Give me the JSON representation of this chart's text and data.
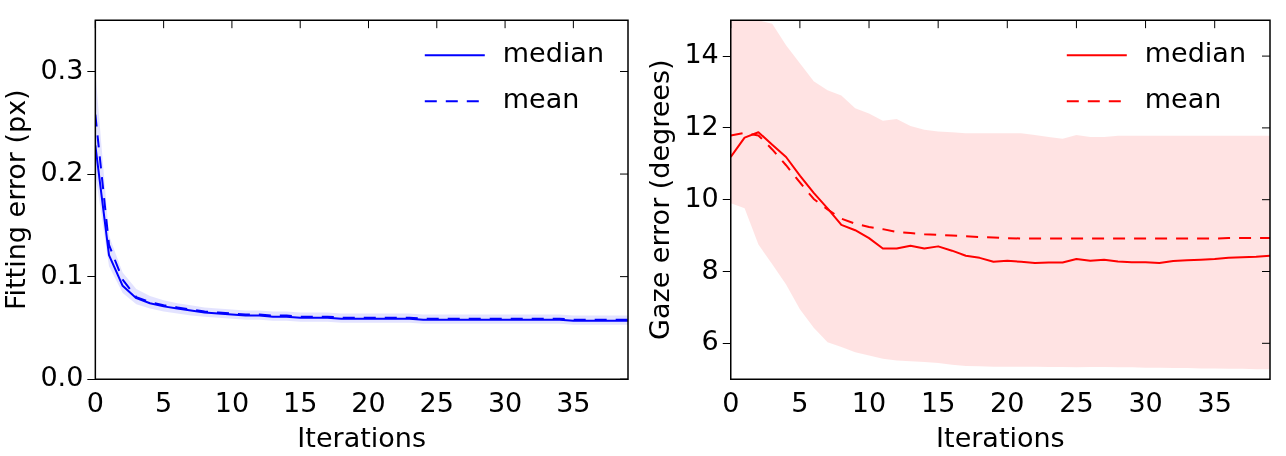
{
  "chart_data": [
    {
      "type": "line",
      "xlabel": "Iterations",
      "ylabel": "Fitting error (px)",
      "x": [
        0,
        1,
        2,
        3,
        4,
        5,
        6,
        7,
        8,
        9,
        10,
        11,
        12,
        13,
        14,
        15,
        16,
        17,
        18,
        19,
        20,
        21,
        22,
        23,
        24,
        25,
        26,
        27,
        28,
        29,
        30,
        31,
        32,
        33,
        34,
        35,
        36,
        37,
        38,
        39
      ],
      "xlim": [
        0,
        39
      ],
      "xticks": [
        0,
        5,
        10,
        15,
        20,
        25,
        30,
        35
      ],
      "ylim": [
        0,
        0.35
      ],
      "yticks": [
        {
          "value": 0,
          "label": "0.0"
        },
        0.1,
        0.2,
        0.3
      ],
      "legend": "top right",
      "grid": false,
      "series": [
        {
          "name": "median",
          "color": "#0000ff",
          "line_style": "solid",
          "values": [
            0.228,
            0.121,
            0.091,
            0.079,
            0.074,
            0.071,
            0.069,
            0.067,
            0.065,
            0.064,
            0.063,
            0.062,
            0.062,
            0.061,
            0.061,
            0.06,
            0.06,
            0.06,
            0.059,
            0.059,
            0.059,
            0.059,
            0.059,
            0.059,
            0.058,
            0.058,
            0.058,
            0.058,
            0.058,
            0.058,
            0.058,
            0.058,
            0.058,
            0.058,
            0.058,
            0.057,
            0.057,
            0.057,
            0.057,
            0.057
          ],
          "lower": [
            0.2,
            0.11,
            0.084,
            0.073,
            0.069,
            0.066,
            0.064,
            0.062,
            0.061,
            0.06,
            0.059,
            0.058,
            0.058,
            0.057,
            0.057,
            0.056,
            0.056,
            0.056,
            0.055,
            0.055,
            0.055,
            0.055,
            0.055,
            0.055,
            0.054,
            0.054,
            0.054,
            0.054,
            0.054,
            0.054,
            0.054,
            0.054,
            0.054,
            0.054,
            0.054,
            0.053,
            0.053,
            0.053,
            0.053,
            0.053
          ],
          "upper": [
            0.3,
            0.14,
            0.104,
            0.088,
            0.081,
            0.077,
            0.074,
            0.072,
            0.07,
            0.069,
            0.068,
            0.067,
            0.067,
            0.066,
            0.066,
            0.065,
            0.065,
            0.065,
            0.064,
            0.064,
            0.064,
            0.064,
            0.064,
            0.064,
            0.063,
            0.063,
            0.063,
            0.063,
            0.063,
            0.063,
            0.063,
            0.063,
            0.063,
            0.063,
            0.063,
            0.062,
            0.062,
            0.062,
            0.062,
            0.062
          ]
        },
        {
          "name": "mean",
          "color": "#0000ff",
          "line_style": "dashed",
          "values": [
            0.258,
            0.131,
            0.097,
            0.08,
            0.075,
            0.072,
            0.07,
            0.068,
            0.066,
            0.065,
            0.064,
            0.063,
            0.063,
            0.062,
            0.062,
            0.061,
            0.061,
            0.061,
            0.06,
            0.06,
            0.06,
            0.06,
            0.06,
            0.06,
            0.059,
            0.059,
            0.059,
            0.059,
            0.059,
            0.059,
            0.059,
            0.059,
            0.059,
            0.059,
            0.059,
            0.058,
            0.058,
            0.058,
            0.058,
            0.058
          ]
        }
      ]
    },
    {
      "type": "line",
      "xlabel": "Iterations",
      "ylabel": "Gaze error (degrees)",
      "x": [
        0,
        1,
        2,
        3,
        4,
        5,
        6,
        7,
        8,
        9,
        10,
        11,
        12,
        13,
        14,
        15,
        16,
        17,
        18,
        19,
        20,
        21,
        22,
        23,
        24,
        25,
        26,
        27,
        28,
        29,
        30,
        31,
        32,
        33,
        34,
        35,
        36,
        37,
        38,
        39
      ],
      "xlim": [
        0,
        39
      ],
      "xticks": [
        0,
        5,
        10,
        15,
        20,
        25,
        30,
        35
      ],
      "ylim": [
        5,
        15
      ],
      "yticks": [
        6,
        8,
        10,
        12,
        14
      ],
      "legend": "top right",
      "grid": false,
      "series": [
        {
          "name": "median",
          "color": "#ff0000",
          "line_style": "solid",
          "values": [
            11.19,
            11.73,
            11.88,
            11.53,
            11.19,
            10.67,
            10.19,
            9.76,
            9.3,
            9.15,
            8.93,
            8.64,
            8.64,
            8.72,
            8.64,
            8.7,
            8.58,
            8.44,
            8.38,
            8.27,
            8.3,
            8.27,
            8.24,
            8.25,
            8.25,
            8.35,
            8.3,
            8.33,
            8.28,
            8.26,
            8.26,
            8.24,
            8.29,
            8.31,
            8.33,
            8.35,
            8.38,
            8.4,
            8.41,
            8.44
          ],
          "lower": [
            9.9,
            9.76,
            8.75,
            8.2,
            7.64,
            6.95,
            6.43,
            6.03,
            5.9,
            5.75,
            5.66,
            5.57,
            5.52,
            5.5,
            5.48,
            5.45,
            5.4,
            5.37,
            5.36,
            5.35,
            5.35,
            5.35,
            5.35,
            5.34,
            5.34,
            5.33,
            5.34,
            5.34,
            5.33,
            5.33,
            5.32,
            5.32,
            5.31,
            5.31,
            5.3,
            5.3,
            5.29,
            5.29,
            5.28,
            5.28
          ],
          "upper": [
            15,
            15,
            15,
            14.9,
            14.3,
            13.8,
            13.3,
            13.05,
            12.9,
            12.55,
            12.4,
            12.2,
            12.25,
            12.05,
            11.95,
            11.9,
            11.88,
            11.85,
            11.85,
            11.85,
            11.85,
            11.85,
            11.8,
            11.75,
            11.7,
            11.8,
            11.75,
            11.75,
            11.78,
            11.78,
            11.78,
            11.78,
            11.78,
            11.78,
            11.78,
            11.78,
            11.78,
            11.78,
            11.78,
            11.78
          ]
        },
        {
          "name": "mean",
          "color": "#ff0000",
          "line_style": "dashed",
          "values": [
            11.79,
            11.86,
            11.79,
            11.4,
            10.96,
            10.48,
            10.02,
            9.73,
            9.47,
            9.33,
            9.24,
            9.18,
            9.1,
            9.07,
            9.04,
            9.02,
            9.0,
            8.98,
            8.96,
            8.95,
            8.93,
            8.92,
            8.92,
            8.92,
            8.92,
            8.92,
            8.92,
            8.92,
            8.92,
            8.92,
            8.92,
            8.92,
            8.92,
            8.92,
            8.92,
            8.92,
            8.93,
            8.93,
            8.93,
            8.93
          ]
        }
      ]
    }
  ]
}
